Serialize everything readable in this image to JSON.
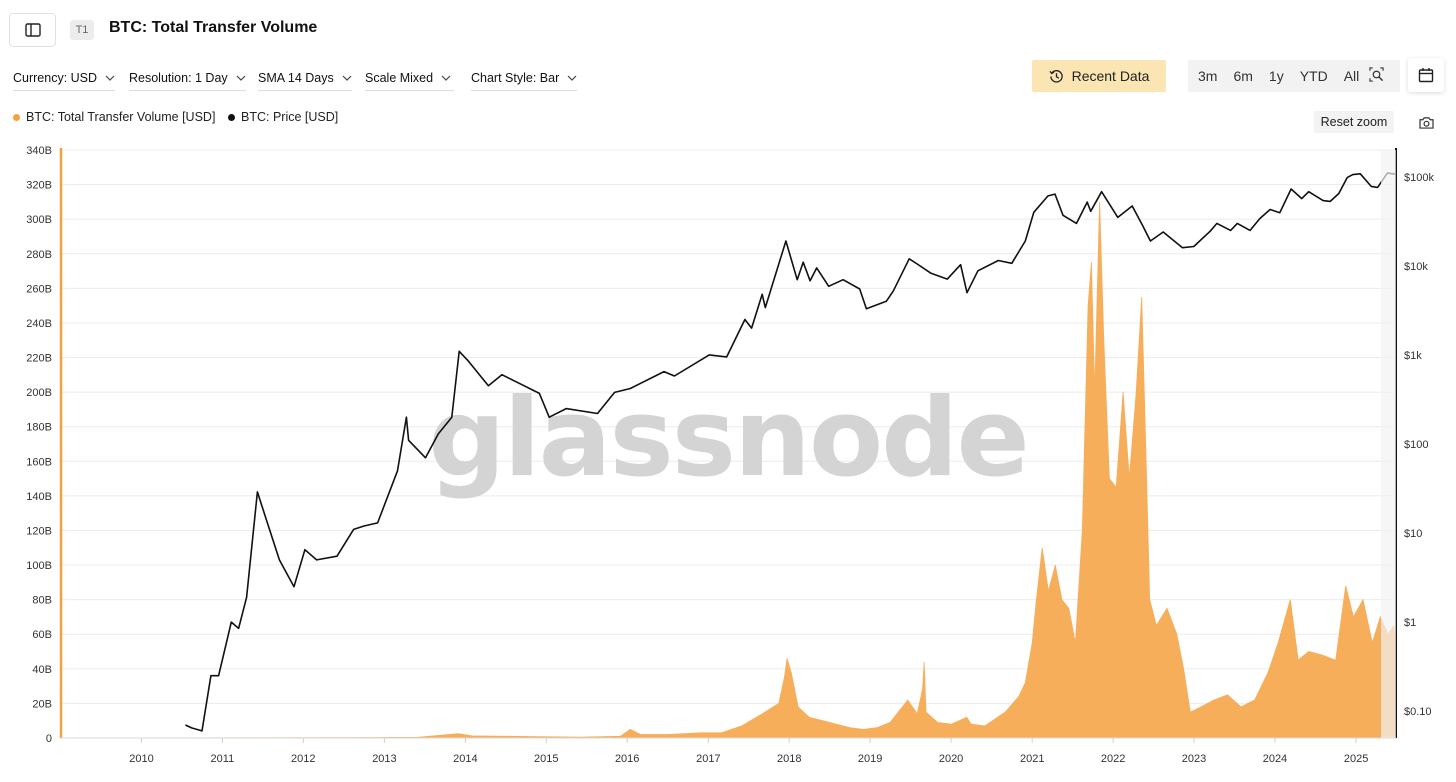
{
  "header": {
    "title": "BTC: Total Transfer Volume",
    "tier_badge": "T1"
  },
  "controls": {
    "currency": "Currency: USD",
    "resolution": "Resolution: 1 Day",
    "sma": "SMA 14 Days",
    "scale": "Scale Mixed",
    "chart_style": "Chart Style: Bar",
    "recent_data": "Recent Data",
    "ranges": [
      "3m",
      "6m",
      "1y",
      "YTD",
      "All"
    ],
    "reset_zoom": "Reset zoom"
  },
  "colors": {
    "volume": "#f5a13f",
    "price": "#111111",
    "left_axis": "#f5a13f",
    "right_axis": "#111111"
  },
  "icons": {
    "sidebar": "sidebar-toggle-icon",
    "recent": "history-icon",
    "zoom": "zoom-search-icon",
    "calendar": "calendar-icon",
    "camera": "camera-icon"
  },
  "watermark": "glassnode",
  "chart_data": {
    "type": "area",
    "x_axis": {
      "type": "date",
      "range": [
        "2009-01-03",
        "2025-06-30"
      ],
      "tick_labels": [
        "2010",
        "2011",
        "2012",
        "2013",
        "2014",
        "2015",
        "2016",
        "2017",
        "2018",
        "2019",
        "2020",
        "2021",
        "2022",
        "2023",
        "2024",
        "2025"
      ]
    },
    "y_axis_left": {
      "scale": "linear",
      "unit": "USD",
      "range": [
        0,
        340000000000
      ],
      "tick_labels": [
        "0",
        "20B",
        "40B",
        "60B",
        "80B",
        "100B",
        "120B",
        "140B",
        "160B",
        "180B",
        "200B",
        "220B",
        "240B",
        "260B",
        "280B",
        "300B",
        "320B",
        "340B"
      ]
    },
    "y_axis_right": {
      "scale": "log",
      "unit": "USD",
      "range": [
        0.05,
        200000
      ],
      "tick_values": [
        0.1,
        1,
        10,
        100,
        1000,
        10000,
        100000
      ],
      "tick_labels": [
        "$0.10",
        "$1",
        "$10",
        "$100",
        "$1k",
        "$10k",
        "$100k"
      ]
    },
    "legend": {
      "placement": "top-left"
    },
    "grid": {
      "horizontal": true,
      "vertical": false
    },
    "series": [
      {
        "name": "BTC: Total Transfer Volume [USD]",
        "axis": "left",
        "style": "area",
        "points": [
          [
            "2009-01-03",
            0
          ],
          [
            "2012-06-01",
            200000000.0
          ],
          [
            "2013-06-01",
            400000000.0
          ],
          [
            "2013-12-01",
            2500000000.0
          ],
          [
            "2014-02-01",
            1200000000.0
          ],
          [
            "2015-06-01",
            500000000.0
          ],
          [
            "2015-12-01",
            1000000000.0
          ],
          [
            "2016-01-15",
            5000000000.0
          ],
          [
            "2016-03-01",
            2000000000.0
          ],
          [
            "2016-07-01",
            2000000000.0
          ],
          [
            "2016-12-01",
            3000000000.0
          ],
          [
            "2017-03-01",
            3000000000.0
          ],
          [
            "2017-06-01",
            7000000000.0
          ],
          [
            "2017-09-01",
            14000000000.0
          ],
          [
            "2017-11-15",
            20000000000.0
          ],
          [
            "2017-12-10",
            35000000000.0
          ],
          [
            "2017-12-22",
            46000000000.0
          ],
          [
            "2018-01-10",
            38000000000.0
          ],
          [
            "2018-02-10",
            18000000000.0
          ],
          [
            "2018-04-01",
            12000000000.0
          ],
          [
            "2018-07-01",
            9000000000.0
          ],
          [
            "2018-10-01",
            6000000000.0
          ],
          [
            "2018-12-01",
            5000000000.0
          ],
          [
            "2019-02-01",
            6000000000.0
          ],
          [
            "2019-04-01",
            9000000000.0
          ],
          [
            "2019-06-20",
            22000000000.0
          ],
          [
            "2019-08-01",
            14000000000.0
          ],
          [
            "2019-08-25",
            28000000000.0
          ],
          [
            "2019-09-02",
            44000000000.0
          ],
          [
            "2019-09-10",
            15000000000.0
          ],
          [
            "2019-11-01",
            9000000000.0
          ],
          [
            "2020-01-01",
            8000000000.0
          ],
          [
            "2020-03-12",
            12000000000.0
          ],
          [
            "2020-04-01",
            8000000000.0
          ],
          [
            "2020-06-01",
            7000000000.0
          ],
          [
            "2020-09-01",
            15000000000.0
          ],
          [
            "2020-11-01",
            24000000000.0
          ],
          [
            "2020-12-01",
            32000000000.0
          ],
          [
            "2021-01-01",
            55000000000.0
          ],
          [
            "2021-01-20",
            80000000000.0
          ],
          [
            "2021-02-15",
            110000000000.0
          ],
          [
            "2021-03-15",
            85000000000.0
          ],
          [
            "2021-04-15",
            100000000000.0
          ],
          [
            "2021-05-15",
            80000000000.0
          ],
          [
            "2021-06-15",
            75000000000.0
          ],
          [
            "2021-07-15",
            55000000000.0
          ],
          [
            "2021-08-15",
            120000000000.0
          ],
          [
            "2021-09-10",
            250000000000.0
          ],
          [
            "2021-09-25",
            275000000000.0
          ],
          [
            "2021-10-10",
            200000000000.0
          ],
          [
            "2021-11-01",
            310000000000.0
          ],
          [
            "2021-11-20",
            230000000000.0
          ],
          [
            "2021-12-15",
            150000000000.0
          ],
          [
            "2022-01-15",
            145000000000.0
          ],
          [
            "2022-02-15",
            200000000000.0
          ],
          [
            "2022-03-15",
            150000000000.0
          ],
          [
            "2022-04-15",
            200000000000.0
          ],
          [
            "2022-05-10",
            255000000000.0
          ],
          [
            "2022-06-01",
            150000000000.0
          ],
          [
            "2022-06-15",
            80000000000.0
          ],
          [
            "2022-07-15",
            65000000000.0
          ],
          [
            "2022-09-01",
            75000000000.0
          ],
          [
            "2022-10-15",
            60000000000.0
          ],
          [
            "2022-11-15",
            40000000000.0
          ],
          [
            "2022-12-15",
            15000000000.0
          ],
          [
            "2023-02-01",
            18000000000.0
          ],
          [
            "2023-04-01",
            22000000000.0
          ],
          [
            "2023-06-01",
            25000000000.0
          ],
          [
            "2023-08-01",
            18000000000.0
          ],
          [
            "2023-10-01",
            22000000000.0
          ],
          [
            "2023-12-01",
            38000000000.0
          ],
          [
            "2024-01-15",
            55000000000.0
          ],
          [
            "2024-03-10",
            80000000000.0
          ],
          [
            "2024-04-15",
            45000000000.0
          ],
          [
            "2024-06-01",
            50000000000.0
          ],
          [
            "2024-08-01",
            48000000000.0
          ],
          [
            "2024-10-01",
            45000000000.0
          ],
          [
            "2024-11-15",
            88000000000.0
          ],
          [
            "2024-12-20",
            70000000000.0
          ],
          [
            "2025-02-01",
            80000000000.0
          ],
          [
            "2025-03-15",
            55000000000.0
          ],
          [
            "2025-04-20",
            70000000000.0
          ],
          [
            "2025-05-25",
            60000000000.0
          ],
          [
            "2025-06-20",
            65000000000.0
          ],
          [
            "2025-06-30",
            55000000000.0
          ]
        ]
      },
      {
        "name": "BTC: Price [USD]",
        "axis": "right",
        "style": "line",
        "points": [
          [
            "2010-07-18",
            0.07
          ],
          [
            "2010-08-15",
            0.065
          ],
          [
            "2010-10-01",
            0.06
          ],
          [
            "2010-11-10",
            0.25
          ],
          [
            "2010-12-15",
            0.25
          ],
          [
            "2011-02-10",
            1.0
          ],
          [
            "2011-03-15",
            0.85
          ],
          [
            "2011-04-20",
            1.9
          ],
          [
            "2011-06-08",
            29
          ],
          [
            "2011-07-15",
            15
          ],
          [
            "2011-09-15",
            5
          ],
          [
            "2011-11-20",
            2.5
          ],
          [
            "2012-01-08",
            6.5
          ],
          [
            "2012-03-01",
            5
          ],
          [
            "2012-06-01",
            5.5
          ],
          [
            "2012-08-15",
            11
          ],
          [
            "2012-10-01",
            12
          ],
          [
            "2012-12-01",
            13
          ],
          [
            "2013-03-01",
            50
          ],
          [
            "2013-04-10",
            200
          ],
          [
            "2013-04-20",
            110
          ],
          [
            "2013-07-05",
            70
          ],
          [
            "2013-09-01",
            130
          ],
          [
            "2013-11-01",
            200
          ],
          [
            "2013-12-04",
            1100
          ],
          [
            "2014-01-15",
            850
          ],
          [
            "2014-04-15",
            450
          ],
          [
            "2014-06-15",
            600
          ],
          [
            "2014-09-01",
            480
          ],
          [
            "2014-12-01",
            370
          ],
          [
            "2015-01-14",
            200
          ],
          [
            "2015-04-01",
            250
          ],
          [
            "2015-08-20",
            220
          ],
          [
            "2015-11-05",
            380
          ],
          [
            "2016-01-15",
            420
          ],
          [
            "2016-06-15",
            650
          ],
          [
            "2016-08-01",
            580
          ],
          [
            "2017-01-05",
            1000
          ],
          [
            "2017-03-25",
            950
          ],
          [
            "2017-06-15",
            2500
          ],
          [
            "2017-07-15",
            2000
          ],
          [
            "2017-09-01",
            4800
          ],
          [
            "2017-09-15",
            3400
          ],
          [
            "2017-12-17",
            19000
          ],
          [
            "2018-02-06",
            7000
          ],
          [
            "2018-03-05",
            11000
          ],
          [
            "2018-04-05",
            6800
          ],
          [
            "2018-05-05",
            9500
          ],
          [
            "2018-06-28",
            5900
          ],
          [
            "2018-09-01",
            7000
          ],
          [
            "2018-11-15",
            5500
          ],
          [
            "2018-12-15",
            3300
          ],
          [
            "2019-03-15",
            4000
          ],
          [
            "2019-04-15",
            5200
          ],
          [
            "2019-06-26",
            12000
          ],
          [
            "2019-08-01",
            10500
          ],
          [
            "2019-10-01",
            8300
          ],
          [
            "2019-12-15",
            7100
          ],
          [
            "2020-02-13",
            10300
          ],
          [
            "2020-03-13",
            5000
          ],
          [
            "2020-05-01",
            8800
          ],
          [
            "2020-08-01",
            11500
          ],
          [
            "2020-10-01",
            10700
          ],
          [
            "2020-12-01",
            19000
          ],
          [
            "2021-01-08",
            40000
          ],
          [
            "2021-03-13",
            61000
          ],
          [
            "2021-04-14",
            64000
          ],
          [
            "2021-05-20",
            37000
          ],
          [
            "2021-07-20",
            30000
          ],
          [
            "2021-09-06",
            52000
          ],
          [
            "2021-09-22",
            41000
          ],
          [
            "2021-11-10",
            68000
          ],
          [
            "2022-01-22",
            35000
          ],
          [
            "2022-03-28",
            47000
          ],
          [
            "2022-05-12",
            29000
          ],
          [
            "2022-06-18",
            19000
          ],
          [
            "2022-08-15",
            24000
          ],
          [
            "2022-11-10",
            16000
          ],
          [
            "2022-12-31",
            16500
          ],
          [
            "2023-03-15",
            24500
          ],
          [
            "2023-04-14",
            30000
          ],
          [
            "2023-06-15",
            25000
          ],
          [
            "2023-07-15",
            30000
          ],
          [
            "2023-09-11",
            25000
          ],
          [
            "2023-10-25",
            34000
          ],
          [
            "2023-12-10",
            43000
          ],
          [
            "2024-01-23",
            39500
          ],
          [
            "2024-03-14",
            73000
          ],
          [
            "2024-05-01",
            57000
          ],
          [
            "2024-06-01",
            68000
          ],
          [
            "2024-08-05",
            54000
          ],
          [
            "2024-09-06",
            53000
          ],
          [
            "2024-10-15",
            65000
          ],
          [
            "2024-11-22",
            98000
          ],
          [
            "2024-12-17",
            106000
          ],
          [
            "2025-01-20",
            108000
          ],
          [
            "2025-03-10",
            78000
          ],
          [
            "2025-04-08",
            76000
          ],
          [
            "2025-05-22",
            110000
          ],
          [
            "2025-06-30",
            107000
          ]
        ]
      }
    ]
  }
}
